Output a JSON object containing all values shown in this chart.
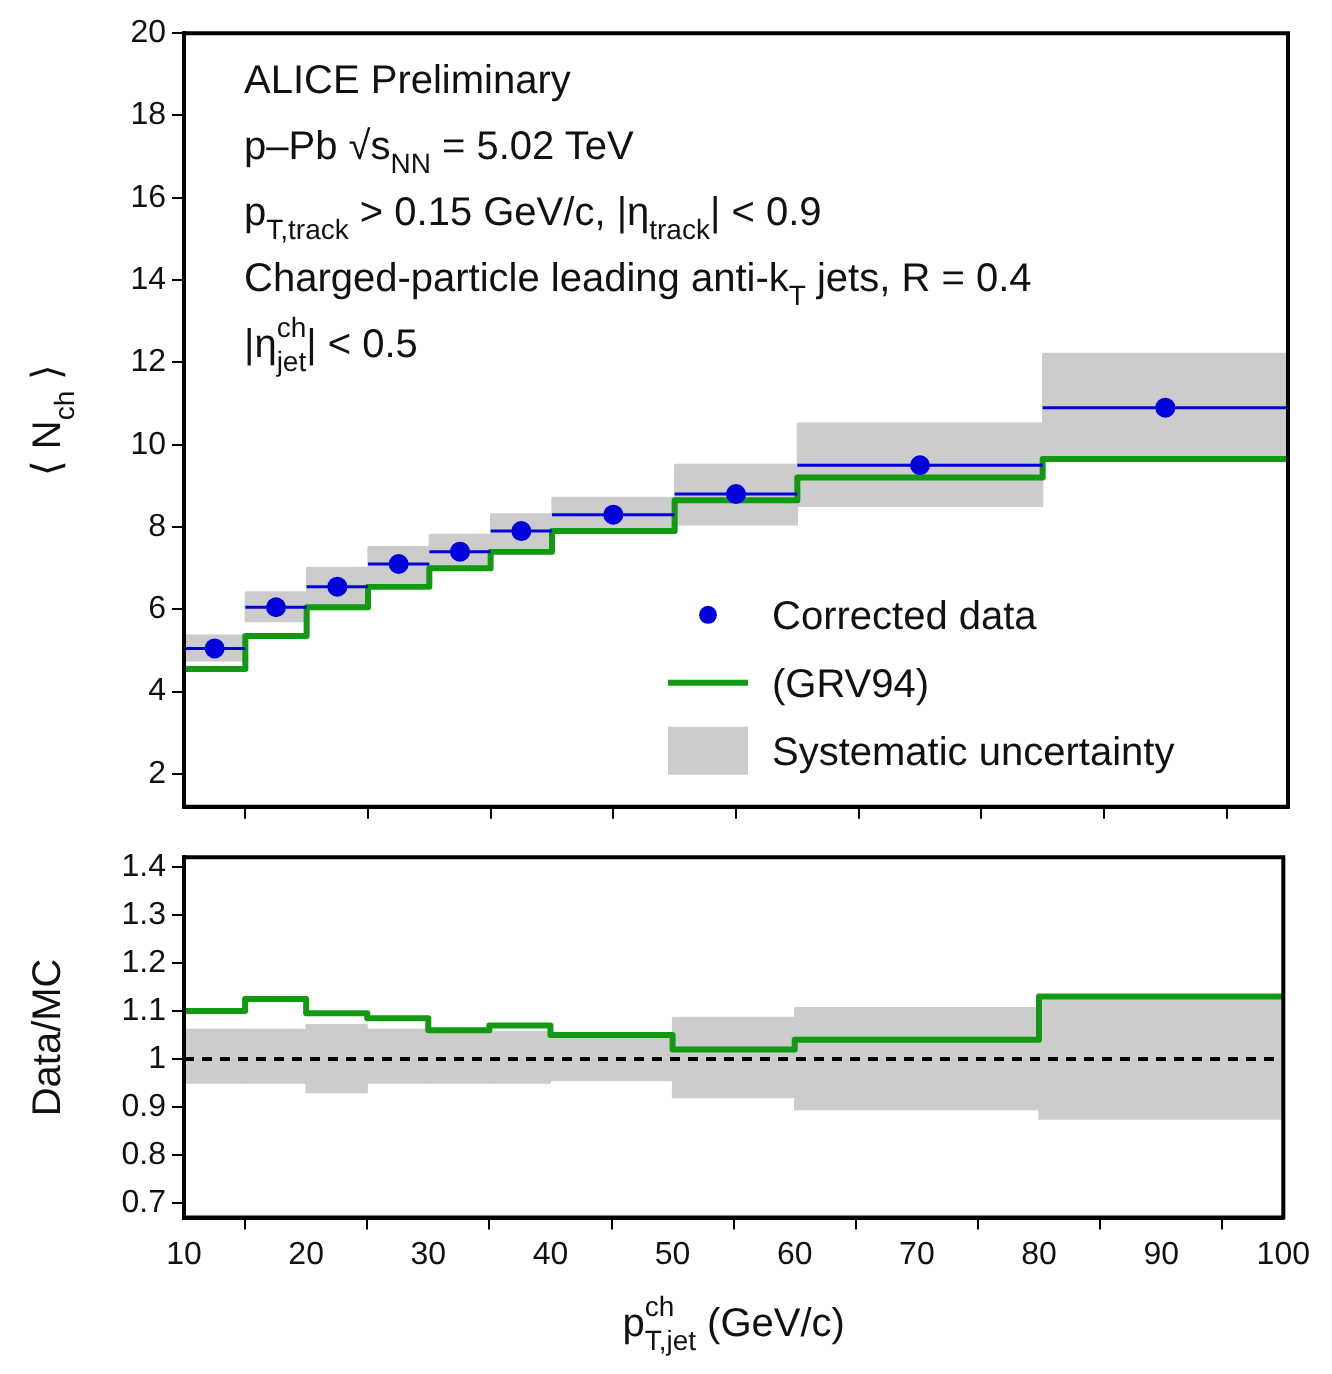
{
  "chart_data": [
    {
      "type": "scatter",
      "ylabel": "⟨ N$_{ch}$ ⟩",
      "annotations": [
        "ALICE Preliminary",
        "p–Pb √s$_{NN}$ = 5.02 TeV",
        "p$_{T,track}$ > 0.15 GeV/c, |η$_{track}$| < 0.9",
        "Charged-particle leading anti-k$_{T}$ jets, R = 0.4",
        "|η$^{ch}$$_{jet}$| < 0.5"
      ],
      "xlim": [
        10,
        100
      ],
      "xticks": [
        10,
        20,
        30,
        40,
        50,
        60,
        70,
        80,
        90,
        100
      ],
      "ylim": [
        1.2,
        20
      ],
      "yticks": [
        2,
        4,
        6,
        8,
        10,
        12,
        14,
        16,
        18,
        20
      ],
      "tick_labels": "y",
      "legend": "bottom right",
      "grid": false,
      "series": [
        {
          "name": "Corrected data",
          "marker": "circle",
          "color": "#0000dd",
          "x": [
            12.5,
            17.5,
            22.5,
            27.5,
            32.5,
            37.5,
            45,
            55,
            70,
            90
          ],
          "values": [
            5.05,
            6.05,
            6.55,
            7.1,
            7.4,
            7.9,
            8.3,
            8.8,
            9.5,
            10.9
          ],
          "xerrors": [
            2.5,
            2.5,
            2.5,
            2.5,
            2.5,
            2.5,
            5,
            5,
            10,
            10
          ]
        },
        {
          "name": "(GRV94)",
          "type": "step",
          "color": "#119911",
          "x": [
            10,
            15,
            20,
            25,
            30,
            35,
            40,
            50,
            60,
            80,
            100
          ],
          "values": [
            4.55,
            5.35,
            6.05,
            6.55,
            7.0,
            7.4,
            7.9,
            8.65,
            9.2,
            9.65,
            9.65
          ]
        },
        {
          "name": "Systematic uncertainty",
          "type": "bar",
          "color": "#cccccc",
          "x": [
            12.5,
            17.5,
            22.5,
            27.5,
            32.5,
            37.5,
            45,
            55,
            70,
            90
          ],
          "base": [
            4.75,
            5.7,
            6.1,
            6.65,
            7.0,
            7.5,
            7.9,
            8.05,
            8.5,
            9.7
          ],
          "values": [
            0.6,
            0.7,
            0.9,
            0.85,
            0.8,
            0.8,
            0.8,
            1.45,
            2.0,
            2.5
          ],
          "xerrors": [
            2.5,
            2.5,
            2.5,
            2.5,
            2.5,
            2.5,
            5,
            5,
            10,
            10
          ]
        }
      ]
    },
    {
      "type": "step",
      "ylabel": "Data/MC",
      "xlabel": "p$^{ch}$$_{T,jet}$ (GeV/c)",
      "xlim": [
        10,
        100
      ],
      "xticks": [
        10,
        20,
        30,
        40,
        50,
        60,
        70,
        80,
        90,
        100
      ],
      "ylim": [
        0.67,
        1.42
      ],
      "yticks": [
        0.7,
        0.8,
        0.9,
        1,
        1.1,
        1.2,
        1.3,
        1.4
      ],
      "grid": false,
      "ref_lines": [
        {
          "axis": "y",
          "value": 1,
          "line_style": "dashed",
          "color": "#000000"
        }
      ],
      "series": [
        {
          "color": "#119911",
          "x": [
            10,
            15,
            20,
            25,
            30,
            35,
            40,
            50,
            60,
            80,
            100
          ],
          "values": [
            1.1,
            1.125,
            1.095,
            1.085,
            1.06,
            1.07,
            1.05,
            1.02,
            1.04,
            1.13,
            1.13
          ]
        },
        {
          "type": "bar",
          "color": "#cccccc",
          "x": [
            12.5,
            17.5,
            22.5,
            27.5,
            32.5,
            37.5,
            45,
            55,
            70,
            90
          ],
          "base": [
            0.95,
            0.95,
            0.93,
            0.95,
            0.95,
            0.95,
            0.955,
            0.92,
            0.895,
            0.875
          ],
          "values": [
            0.11,
            0.11,
            0.14,
            0.11,
            0.105,
            0.105,
            0.095,
            0.165,
            0.21,
            0.255
          ],
          "xerrors": [
            2.5,
            2.5,
            2.5,
            2.5,
            2.5,
            2.5,
            5,
            5,
            10,
            10
          ]
        }
      ]
    }
  ]
}
